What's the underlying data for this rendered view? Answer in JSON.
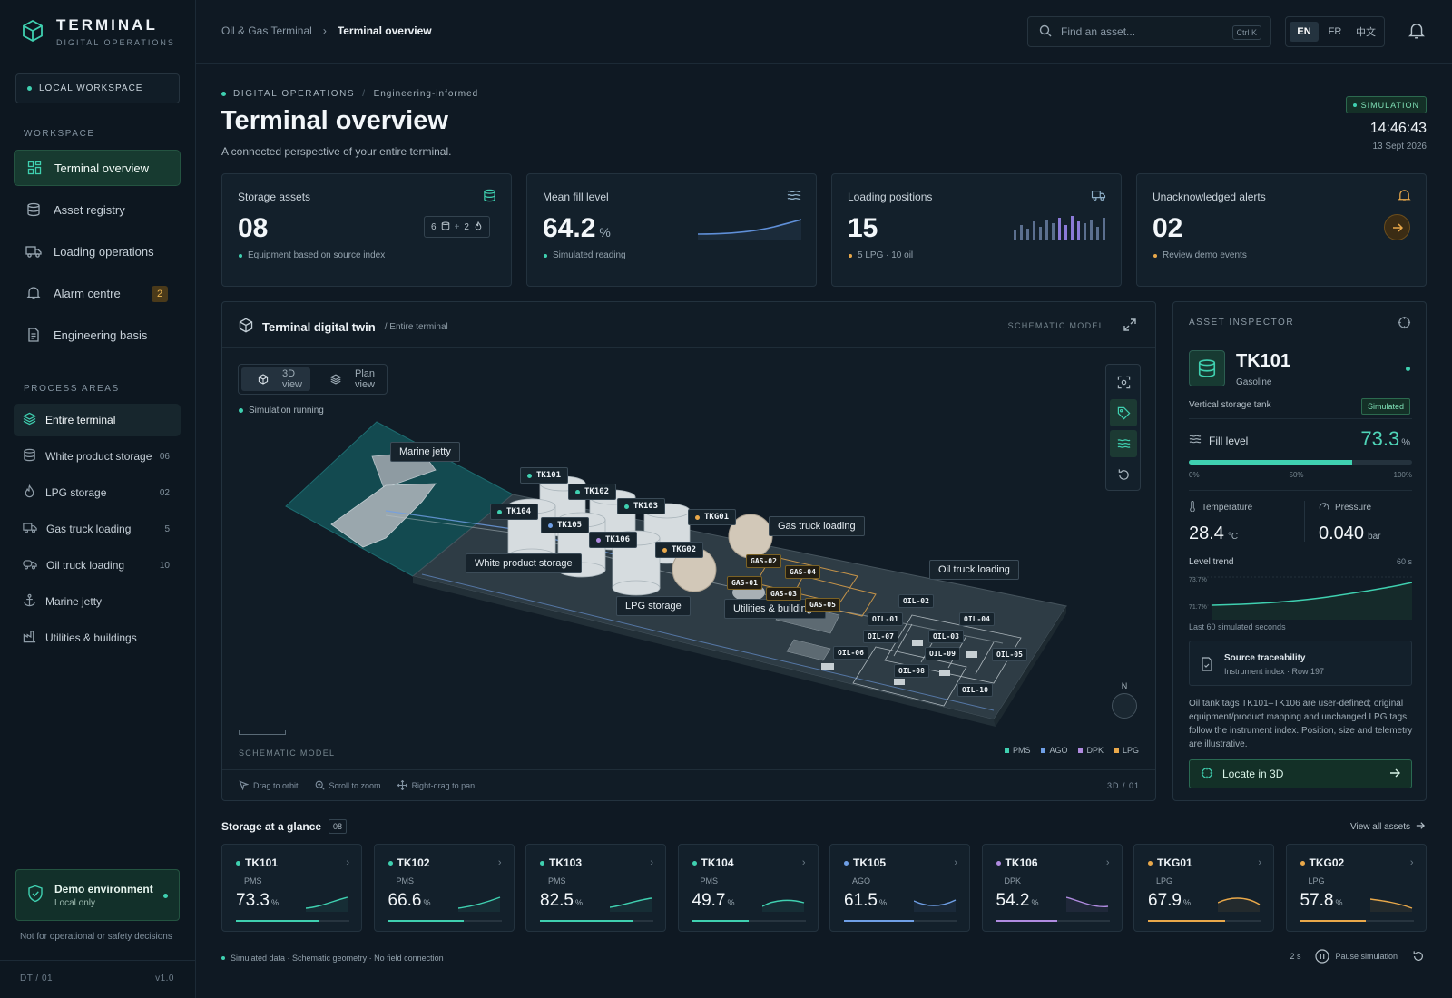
{
  "brand": {
    "name": "TERMINAL",
    "subtitle": "DIGITAL OPERATIONS"
  },
  "workspace_pill": "LOCAL WORKSPACE",
  "sidebar": {
    "workspace_label": "WORKSPACE",
    "nav": [
      {
        "label": "Terminal overview",
        "icon": "grid-icon"
      },
      {
        "label": "Asset registry",
        "icon": "database-icon"
      },
      {
        "label": "Loading operations",
        "icon": "truck-icon"
      },
      {
        "label": "Alarm centre",
        "icon": "bell-icon",
        "badge": "2"
      },
      {
        "label": "Engineering basis",
        "icon": "document-icon"
      }
    ],
    "areas_label": "PROCESS AREAS",
    "areas": [
      {
        "label": "Entire terminal",
        "count": ""
      },
      {
        "label": "White product storage",
        "count": "06"
      },
      {
        "label": "LPG storage",
        "count": "02"
      },
      {
        "label": "Gas truck loading",
        "count": "5"
      },
      {
        "label": "Oil truck loading",
        "count": "10"
      },
      {
        "label": "Marine jetty",
        "count": ""
      },
      {
        "label": "Utilities & buildings",
        "count": ""
      }
    ],
    "demo": {
      "title": "Demo environment",
      "sub": "Local only"
    },
    "disclaimer": "Not for operational or safety decisions",
    "footer_left": "DT / 01",
    "footer_right": "v1.0"
  },
  "topbar": {
    "breadcrumb": [
      "Oil & Gas Terminal",
      "Terminal overview"
    ],
    "search_placeholder": "Find an asset...",
    "search_shortcut": "Ctrl K",
    "languages": [
      "EN",
      "FR",
      "中文"
    ],
    "active_language": "EN"
  },
  "header": {
    "eyebrow": "DIGITAL OPERATIONS",
    "eyebrow_sub": "Engineering-informed",
    "title": "Terminal overview",
    "subtitle": "A connected perspective of your entire terminal.",
    "mode_badge": "SIMULATION",
    "time": "14:46:43",
    "date": "13 Sept 2026"
  },
  "kpis": [
    {
      "label": "Storage assets",
      "value": "08",
      "unit": "",
      "note": "Equipment based on source index",
      "chip_a": "6",
      "chip_b": "2",
      "dot_color": "#3fd0b0"
    },
    {
      "label": "Mean fill level",
      "value": "64.2",
      "unit": "%",
      "note": "Simulated reading",
      "dot_color": "#3fd0b0"
    },
    {
      "label": "Loading positions",
      "value": "15",
      "unit": "",
      "note": "5 LPG · 10 oil",
      "dot_color": "#e9a84a"
    },
    {
      "label": "Unacknowledged alerts",
      "value": "02",
      "unit": "",
      "note": "Review demo events",
      "dot_color": "#e9a84a"
    }
  ],
  "twin": {
    "title": "Terminal digital twin",
    "scope": "/ Entire terminal",
    "model_label": "SCHEMATIC MODEL",
    "views": [
      "3D view",
      "Plan view"
    ],
    "active_view": "3D view",
    "status": "Simulation running",
    "zones": [
      "Marine jetty",
      "White product storage",
      "LPG storage",
      "Gas truck loading",
      "Utilities & buildings",
      "Oil truck loading"
    ],
    "tank_tags": [
      "TK101",
      "TK102",
      "TK103",
      "TK104",
      "TK105",
      "TK106",
      "TKG01",
      "TKG02"
    ],
    "gas_tags": [
      "GAS-01",
      "GAS-02",
      "GAS-03",
      "GAS-04",
      "GAS-05"
    ],
    "oil_tags": [
      "OIL-01",
      "OIL-02",
      "OIL-03",
      "OIL-04",
      "OIL-05",
      "OIL-06",
      "OIL-07",
      "OIL-08",
      "OIL-09",
      "OIL-10"
    ],
    "compass": "N",
    "legend": [
      {
        "label": "PMS",
        "color": "#3fd0b0"
      },
      {
        "label": "AGO",
        "color": "#6f9fe6"
      },
      {
        "label": "DPK",
        "color": "#b08be0"
      },
      {
        "label": "LPG",
        "color": "#e9a84a"
      }
    ],
    "hints": [
      "Drag to orbit",
      "Scroll to zoom",
      "Right-drag to pan"
    ],
    "page": "3D / 01"
  },
  "inspector": {
    "heading": "ASSET INSPECTOR",
    "name": "TK101",
    "product": "Gasoline",
    "type": "Vertical storage tank",
    "tag": "Simulated",
    "fill_label": "Fill level",
    "fill_value": "73.3",
    "fill_unit": "%",
    "fill_fraction": 0.733,
    "ticks": [
      "0%",
      "50%",
      "100%"
    ],
    "temp_label": "Temperature",
    "temp_value": "28.4",
    "temp_unit": "°C",
    "pressure_label": "Pressure",
    "pressure_value": "0.040",
    "pressure_unit": "bar",
    "trend_label": "Level trend",
    "trend_window": "60 s",
    "trend_high": "73.7%",
    "trend_low": "71.7%",
    "trend_caption": "Last 60 simulated seconds",
    "source_title": "Source traceability",
    "source_sub": "Instrument index · Row 197",
    "note": "Oil tank tags TK101–TK106 are user-defined; original equipment/product mapping and unchanged LPG tags follow the instrument index. Position, size and telemetry are illustrative.",
    "locate": "Locate in 3D"
  },
  "glance": {
    "title": "Storage at a glance",
    "count": "08",
    "view_all": "View all assets",
    "cards": [
      {
        "name": "TK101",
        "product": "PMS",
        "value": "73.3",
        "fill": 0.733,
        "color": "#3fd0b0"
      },
      {
        "name": "TK102",
        "product": "PMS",
        "value": "66.6",
        "fill": 0.666,
        "color": "#3fd0b0"
      },
      {
        "name": "TK103",
        "product": "PMS",
        "value": "82.5",
        "fill": 0.825,
        "color": "#3fd0b0"
      },
      {
        "name": "TK104",
        "product": "PMS",
        "value": "49.7",
        "fill": 0.497,
        "color": "#3fd0b0"
      },
      {
        "name": "TK105",
        "product": "AGO",
        "value": "61.5",
        "fill": 0.615,
        "color": "#6f9fe6"
      },
      {
        "name": "TK106",
        "product": "DPK",
        "value": "54.2",
        "fill": 0.542,
        "color": "#b08be0"
      },
      {
        "name": "TKG01",
        "product": "LPG",
        "value": "67.9",
        "fill": 0.679,
        "color": "#e9a84a"
      },
      {
        "name": "TKG02",
        "product": "LPG",
        "value": "57.8",
        "fill": 0.578,
        "color": "#e9a84a"
      }
    ]
  },
  "footer": {
    "note": "Simulated data · Schematic geometry · No field connection",
    "interval": "2 s",
    "pause": "Pause simulation"
  }
}
